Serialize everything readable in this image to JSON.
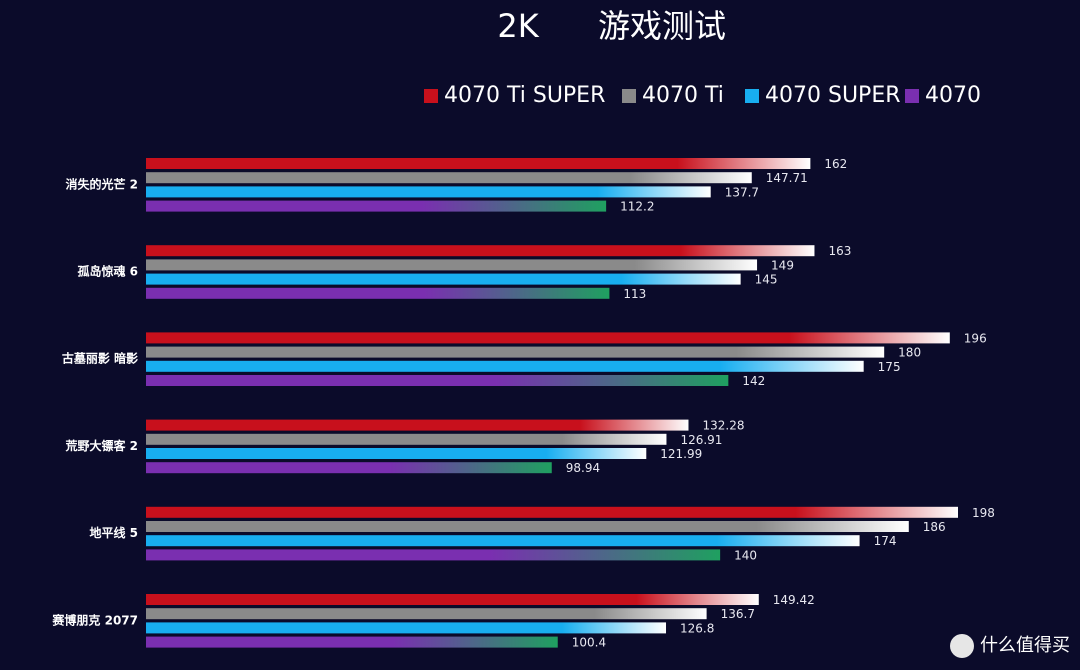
{
  "chart_data": {
    "type": "bar",
    "orientation": "horizontal",
    "title": "2K",
    "subtitle": "游戏测试",
    "categories": [
      "消失的光芒 2",
      "孤岛惊魂 6",
      "古墓丽影 暗影",
      "荒野大镖客 2",
      "地平线 5",
      "赛博朋克 2077"
    ],
    "series": [
      {
        "name": "4070 Ti SUPER",
        "color": "#c8101c",
        "gradient_end": "#ffffff",
        "values": [
          162,
          163,
          196,
          132.28,
          198,
          149.42
        ]
      },
      {
        "name": "4070 Ti",
        "color": "#8a8a8a",
        "gradient_end": "#ffffff",
        "values": [
          147.71,
          149,
          180,
          126.91,
          186,
          136.7
        ]
      },
      {
        "name": "4070 SUPER",
        "color": "#18aef0",
        "gradient_end": "#ffffff",
        "values": [
          137.7,
          145,
          175,
          121.99,
          174,
          126.8
        ]
      },
      {
        "name": "4070",
        "color": "#7a2fb0",
        "gradient_end": "#1fa060",
        "values": [
          112.2,
          113,
          142,
          98.94,
          140,
          100.4
        ]
      }
    ],
    "watermark": "什么值得买"
  }
}
